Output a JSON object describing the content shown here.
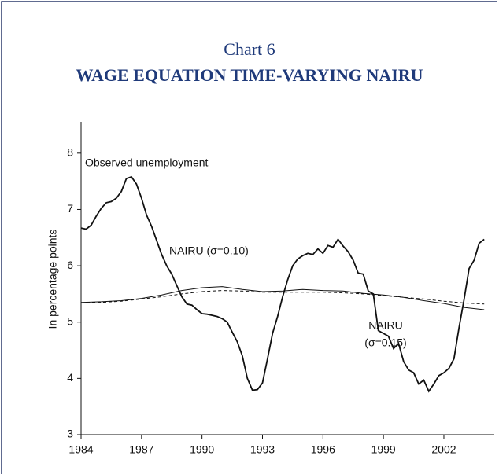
{
  "chart_data": {
    "type": "line",
    "title": "Chart 6",
    "subtitle": "WAGE EQUATION TIME-VARYING NAIRU",
    "y_label": "In percentage points",
    "annotations": [
      "Observed unemployment",
      "NAIRU (σ=0.10)",
      "NAIRU",
      "(σ=0.15)"
    ],
    "xlim": [
      1984,
      2004.5
    ],
    "xticks": [
      1984,
      1987,
      1990,
      1993,
      1996,
      1999,
      2002
    ],
    "ylim": [
      3,
      8.5
    ],
    "yticks": [
      3,
      4,
      5,
      6,
      7,
      8
    ],
    "grid": false,
    "series": [
      {
        "color": "#111111",
        "dash": false,
        "width": 1.8,
        "x": [
          1984,
          1984.25,
          1984.5,
          1984.75,
          1985,
          1985.25,
          1985.5,
          1985.75,
          1986,
          1986.25,
          1986.5,
          1986.75,
          1987,
          1987.25,
          1987.5,
          1987.75,
          1988,
          1988.25,
          1988.5,
          1988.75,
          1989,
          1989.25,
          1989.5,
          1989.75,
          1990,
          1990.25,
          1990.5,
          1990.75,
          1991,
          1991.25,
          1991.5,
          1991.75,
          1992,
          1992.25,
          1992.5,
          1992.75,
          1993,
          1993.25,
          1993.5,
          1993.75,
          1994,
          1994.25,
          1994.5,
          1994.75,
          1995,
          1995.25,
          1995.5,
          1995.75,
          1996,
          1996.25,
          1996.5,
          1996.75,
          1997,
          1997.25,
          1997.5,
          1997.75,
          1998,
          1998.25,
          1998.5,
          1998.75,
          1999,
          1999.25,
          1999.5,
          1999.75,
          2000,
          2000.25,
          2000.5,
          2000.75,
          2001,
          2001.25,
          2001.5,
          2001.75,
          2002,
          2002.25,
          2002.5,
          2002.75,
          2003,
          2003.25,
          2003.5,
          2003.75,
          2004
        ],
        "values": [
          6.67,
          6.65,
          6.72,
          6.88,
          7.02,
          7.12,
          7.14,
          7.2,
          7.32,
          7.55,
          7.58,
          7.45,
          7.2,
          6.9,
          6.7,
          6.45,
          6.2,
          6.0,
          5.85,
          5.65,
          5.45,
          5.32,
          5.3,
          5.22,
          5.15,
          5.14,
          5.12,
          5.1,
          5.06,
          5.0,
          4.82,
          4.65,
          4.4,
          4.0,
          3.79,
          3.8,
          3.92,
          4.35,
          4.8,
          5.1,
          5.45,
          5.75,
          6.0,
          6.12,
          6.18,
          6.22,
          6.2,
          6.3,
          6.22,
          6.36,
          6.33,
          6.47,
          6.35,
          6.25,
          6.1,
          5.87,
          5.85,
          5.55,
          5.5,
          4.85,
          4.8,
          4.75,
          4.53,
          4.62,
          4.3,
          4.15,
          4.1,
          3.9,
          3.97,
          3.77,
          3.9,
          4.05,
          4.1,
          4.18,
          4.35,
          4.9,
          5.4,
          5.95,
          6.1,
          6.4,
          6.47
        ]
      },
      {
        "color": "#111111",
        "dash": false,
        "width": 1,
        "x": [
          1984,
          1985,
          1986,
          1987,
          1988,
          1989,
          1990,
          1991,
          1992,
          1993,
          1994,
          1995,
          1996,
          1997,
          1998,
          1999,
          2000,
          2001,
          2002,
          2003,
          2004
        ],
        "values": [
          5.35,
          5.36,
          5.38,
          5.42,
          5.48,
          5.56,
          5.61,
          5.63,
          5.58,
          5.54,
          5.55,
          5.58,
          5.56,
          5.55,
          5.51,
          5.48,
          5.44,
          5.38,
          5.33,
          5.26,
          5.22
        ]
      },
      {
        "color": "#111111",
        "dash": true,
        "width": 1,
        "x": [
          1984,
          1985,
          1986,
          1987,
          1988,
          1989,
          1990,
          1991,
          1992,
          1993,
          1994,
          1995,
          1996,
          1997,
          1998,
          1999,
          2000,
          2001,
          2002,
          2003,
          2004
        ],
        "values": [
          5.34,
          5.35,
          5.37,
          5.41,
          5.45,
          5.5,
          5.54,
          5.56,
          5.55,
          5.53,
          5.53,
          5.53,
          5.53,
          5.52,
          5.5,
          5.47,
          5.44,
          5.41,
          5.37,
          5.34,
          5.32
        ]
      }
    ]
  }
}
